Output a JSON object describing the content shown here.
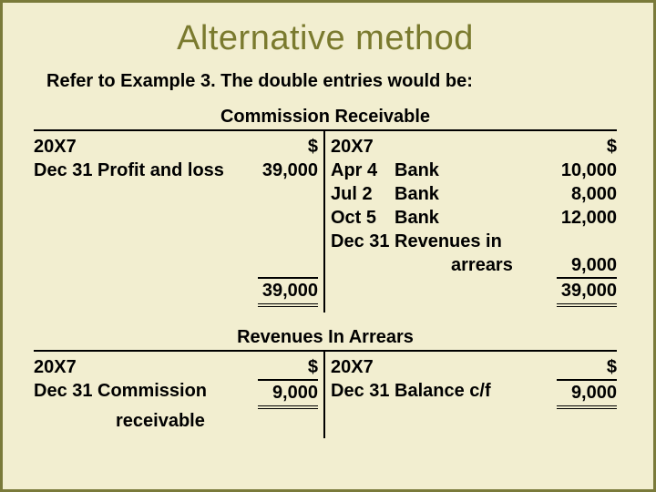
{
  "title": "Alternative method",
  "subtitle": "Refer to Example 3. The double entries would be:",
  "currency_symbol": "$",
  "colors": {
    "background": "#f2eed0",
    "border": "#7a7a3a",
    "title": "#7a7a2e",
    "text": "#000000",
    "rule": "#000000"
  },
  "typography": {
    "title_font": "Impact",
    "title_fontsize": 38,
    "body_font": "Arial",
    "body_fontsize": 20,
    "body_weight": "bold"
  },
  "accounts": [
    {
      "name": "Commission Receivable",
      "debit": {
        "year": "20X7",
        "rows": [
          {
            "date": "Dec 31",
            "desc": "Profit and loss",
            "amount": "39,000"
          }
        ],
        "total": "39,000"
      },
      "credit": {
        "year": "20X7",
        "rows": [
          {
            "date": "Apr  4",
            "desc": "Bank",
            "amount": "10,000"
          },
          {
            "date": "Jul   2",
            "desc": "Bank",
            "amount": "8,000"
          },
          {
            "date": "Oct  5",
            "desc": "Bank",
            "amount": "12,000"
          },
          {
            "date": "Dec 31",
            "desc": "Revenues in",
            "desc2": "arrears",
            "amount": "9,000"
          }
        ],
        "total": "39,000"
      }
    },
    {
      "name": "Revenues In Arrears",
      "debit": {
        "year": "20X7",
        "rows": [
          {
            "date": "Dec 31",
            "desc": "Commission",
            "desc2": "receivable",
            "amount": "9,000",
            "final": true
          }
        ]
      },
      "credit": {
        "year": "20X7",
        "rows": [
          {
            "date": "Dec 31",
            "desc": "Balance c/f",
            "amount": "9,000",
            "final": true
          }
        ]
      }
    }
  ]
}
